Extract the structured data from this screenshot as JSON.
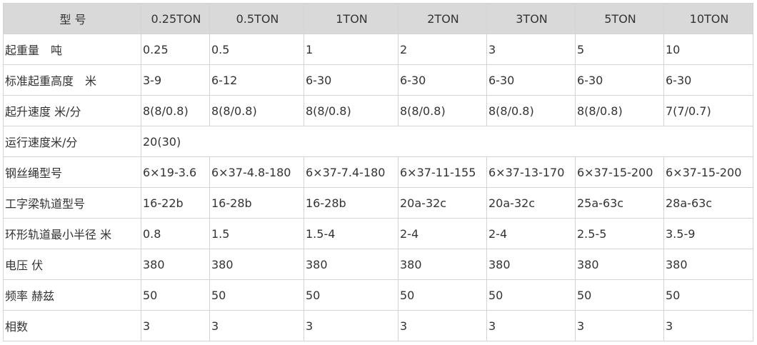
{
  "table": {
    "header": [
      "型 号",
      "0.25TON",
      "0.5TON",
      "1TON",
      "2TON",
      "3TON",
      "5TON",
      "10TON"
    ],
    "rows": [
      [
        "起重量　吨",
        "0.25",
        "0.5",
        "1",
        "2",
        "3",
        "5",
        "10"
      ],
      [
        "标准起重高度　米",
        "3-9",
        "6-12",
        "6-30",
        "6-30",
        "6-30",
        "6-30",
        "6-30"
      ],
      [
        "起升速度 米/分",
        "8(8/0.8)",
        "8(8/0.8)",
        "8(8/0.8)",
        "8(8/0.8)",
        "8(8/0.8)",
        "8(8/0.8)",
        "7(7/0.7)"
      ],
      [
        "运行速度米/分",
        "20(30)"
      ],
      [
        "钢丝绳型号",
        "6×19-3.6",
        "6×37-4.8-180",
        "6×37-7.4-180",
        "6×37-11-155",
        "6×37-13-170",
        "6×37-15-200",
        "6×37-15-200"
      ],
      [
        "工字梁轨道型号",
        "16-22b",
        "16-28b",
        "16-28b",
        "20a-32c",
        "20a-32c",
        "25a-63c",
        "28a-63c"
      ],
      [
        "环形轨道最小半径 米",
        "0.8",
        "1.5",
        "1.5-4",
        "2-4",
        "2-4",
        "2.5-5",
        "3.5-9"
      ],
      [
        "电压 伏",
        "380",
        "380",
        "380",
        "380",
        "380",
        "380",
        "380"
      ],
      [
        "频率 赫兹",
        "50",
        "50",
        "50",
        "50",
        "50",
        "50",
        "50"
      ],
      [
        "相数",
        "3",
        "3",
        "3",
        "3",
        "3",
        "3",
        "3"
      ]
    ]
  }
}
